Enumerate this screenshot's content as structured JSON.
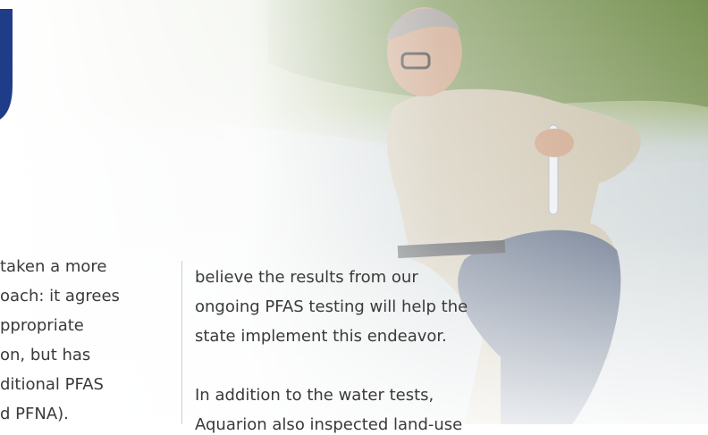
{
  "left_column": {
    "lines": [
      "taken a more",
      "oach: it agrees",
      "ppropriate",
      "on, but has",
      "ditional PFAS",
      "d PFNA)."
    ]
  },
  "right_column": {
    "paragraphs": [
      [
        "believe the results from our",
        "ongoing PFAS testing will help the",
        "state implement this endeavor."
      ],
      [
        "In addition to the water tests,",
        "Aquarion also inspected land-use"
      ]
    ]
  }
}
